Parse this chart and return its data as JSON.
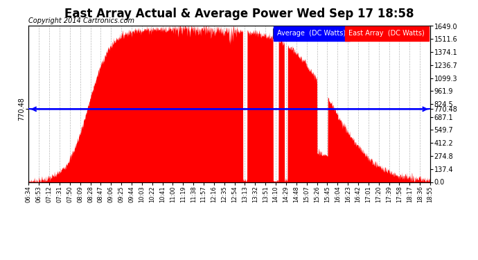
{
  "title": "East Array Actual & Average Power Wed Sep 17 18:58",
  "copyright": "Copyright 2014 Cartronics.com",
  "legend_avg": "Average  (DC Watts)",
  "legend_east": "East Array  (DC Watts)",
  "avg_value": 770.48,
  "ymax": 1649.0,
  "ymin": 0.0,
  "yticks_right": [
    0.0,
    137.4,
    274.8,
    412.2,
    549.7,
    687.1,
    824.5,
    961.9,
    1099.3,
    1236.7,
    1374.1,
    1511.6,
    1649.0
  ],
  "fill_color": "#FF0000",
  "line_color": "#0000FF",
  "bg_color": "#FFFFFF",
  "grid_color": "#888888",
  "title_fontsize": 12,
  "copyright_fontsize": 7,
  "xtick_fontsize": 6,
  "ytick_fontsize": 7,
  "xtick_labels": [
    "06:34",
    "06:53",
    "07:12",
    "07:31",
    "07:50",
    "08:09",
    "08:28",
    "08:47",
    "09:06",
    "09:25",
    "09:44",
    "10:03",
    "10:22",
    "10:41",
    "11:00",
    "11:19",
    "11:38",
    "11:57",
    "12:16",
    "12:35",
    "12:54",
    "13:13",
    "13:32",
    "13:51",
    "14:10",
    "14:29",
    "14:48",
    "15:07",
    "15:26",
    "15:45",
    "16:04",
    "16:23",
    "16:42",
    "17:01",
    "17:20",
    "17:39",
    "17:58",
    "18:17",
    "18:36",
    "18:55"
  ]
}
